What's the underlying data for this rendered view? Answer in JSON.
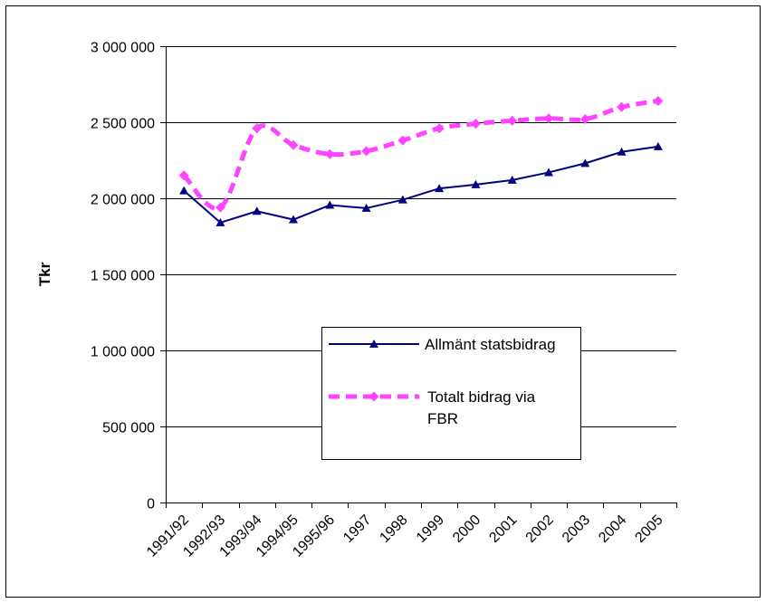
{
  "chart_data": {
    "type": "line",
    "title": "",
    "xlabel": "",
    "ylabel": "Tkr",
    "ylim": [
      0,
      3000000
    ],
    "y_ticks": [
      "0",
      "500 000",
      "1 000 000",
      "1 500 000",
      "2 000 000",
      "2 500 000",
      "3 000 000"
    ],
    "y_tick_values": [
      0,
      500000,
      1000000,
      1500000,
      2000000,
      2500000,
      3000000
    ],
    "grid": true,
    "legend_placement": "center-right",
    "categories": [
      "1991/92",
      "1992/93",
      "1993/94",
      "1994/95",
      "1995/96",
      "1997",
      "1998",
      "1999",
      "2000",
      "2001",
      "2002",
      "2003",
      "2004",
      "2005"
    ],
    "series": [
      {
        "name": "Allmänt statsbidrag",
        "color": "#000080",
        "marker": "triangle",
        "line_style": "solid",
        "values": [
          2050000,
          1840000,
          1915000,
          1860000,
          1955000,
          1935000,
          1990000,
          2065000,
          2090000,
          2120000,
          2170000,
          2230000,
          2305000,
          2340000
        ]
      },
      {
        "name": "Totalt bidrag via FBR",
        "color": "#FF44FF",
        "marker": "diamond",
        "line_style": "dashed",
        "values": [
          2150000,
          1940000,
          2460000,
          2350000,
          2290000,
          2310000,
          2380000,
          2460000,
          2490000,
          2510000,
          2525000,
          2520000,
          2600000,
          2640000
        ]
      }
    ]
  }
}
